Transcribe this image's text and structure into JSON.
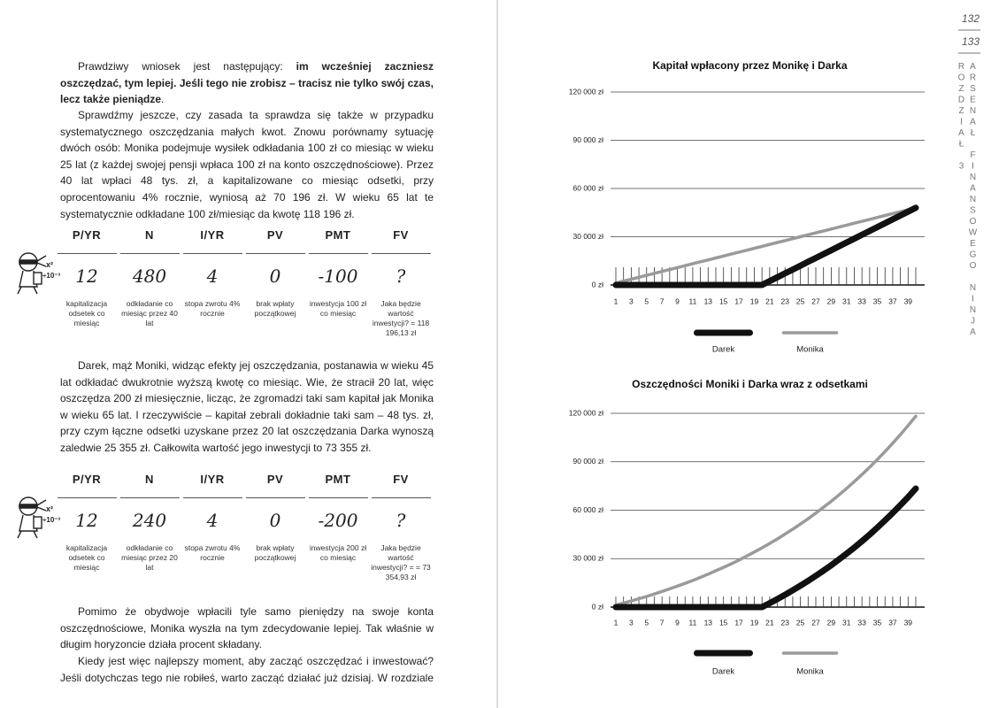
{
  "page_numbers": [
    "132",
    "133"
  ],
  "sidebar": [
    "ROZDZIAŁ 3",
    "ARSENAŁ FINANSOWEGO NINJA"
  ],
  "calculator_icon": [
    "x²",
    "÷10⁻³"
  ],
  "left_page": {
    "paragraphs": [
      [
        "Prawdziwy wniosek jest następujący: ",
        "im wcześniej zaczniesz oszczędzać, tym lepiej. Jeśli tego nie zrobisz – tracisz nie tylko swój czas, lecz także pieniądze",
        "."
      ],
      "Sprawdźmy jeszcze, czy zasada ta sprawdza się także w przypadku systematycznego oszczędzania małych kwot. Znowu porównamy sytuację dwóch osób: Monika podejmuje wysiłek odkładania 100 zł co miesiąc w wieku 25 lat (z każdej swojej pensji wpłaca 100 zł na konto oszczędnościowe). Przez 40 lat wpłaci 48 tys. zł, a kapitalizowane co miesiąc odsetki, przy oprocentowaniu 4% rocznie, wyniosą aż 70 196 zł. W wieku 65 lat te systematycznie odkładane 100 zł/miesiąc da kwotę 118 196 zł.",
      "Darek, mąż Moniki, widząc efekty jej oszczędzania, postanawia w wieku 45 lat odkładać dwukrotnie wyższą kwotę co miesiąc. Wie, że stracił 20 lat, więc oszczędza 200 zł miesięcznie, licząc, że zgromadzi taki sam kapitał jak Monika w wieku 65 lat. I rzeczywiście – kapitał zebrali dokładnie taki sam – 48 tys. zł, przy czym łączne odsetki uzyskane przez 20 lat oszczędzania Darka wynoszą zaledwie 25 355 zł. Całkowita wartość jego inwestycji to 73 355 zł.",
      "Pomimo że obydwoje wpłacili tyle samo pieniędzy na swoje konta oszczędnościowe, Monika wyszła na tym zdecydowanie lepiej. Tak właśnie w długim horyzoncie działa procent składany.",
      "Kiedy jest więc najlepszy moment, aby zacząć oszczędzać i inwestować? Jeśli dotychczas tego nie robiłeś, warto zacząć działać już dzisiaj. W rozdziale"
    ],
    "tables": [
      {
        "header": [
          "P/YR",
          "N",
          "I/YR",
          "PV",
          "PMT",
          "FV"
        ],
        "values": [
          "12",
          "480",
          "4",
          "0",
          "-100",
          "?"
        ],
        "descriptions": [
          "kapitalizacja odsetek co miesiąc",
          "odkładanie co miesiąc przez 40 lat",
          "stopa zwrotu 4% rocznie",
          "brak wpłaty początkowej",
          "inwestycja 100 zł co miesiąc",
          "Jaka będzie wartość inwestycji? = 118 196,13 zł"
        ]
      },
      {
        "header": [
          "P/YR",
          "N",
          "I/YR",
          "PV",
          "PMT",
          "FV"
        ],
        "values": [
          "12",
          "240",
          "4",
          "0",
          "-200",
          "?"
        ],
        "descriptions": [
          "kapitalizacja odsetek co miesiąc",
          "odkładanie co miesiąc przez 20 lat",
          "stopa zwrotu 4% rocznie",
          "brak wpłaty początkowej",
          "inwestycja 200 zł co miesiąc",
          "Jaka będzie wartość inwestycji? = = 73 354,93 zł"
        ]
      }
    ]
  },
  "chart_data": [
    {
      "type": "line",
      "title": "Kapitał wpłacony przez Monikę i Darka",
      "x": [
        1,
        2,
        3,
        4,
        5,
        6,
        7,
        8,
        9,
        10,
        11,
        12,
        13,
        14,
        15,
        16,
        17,
        18,
        19,
        20,
        21,
        22,
        23,
        24,
        25,
        26,
        27,
        28,
        29,
        30,
        31,
        32,
        33,
        34,
        35,
        36,
        37,
        38,
        39,
        40
      ],
      "xlim": [
        1,
        40
      ],
      "xticks": [
        1,
        3,
        5,
        7,
        9,
        11,
        13,
        15,
        17,
        19,
        21,
        23,
        25,
        27,
        29,
        31,
        33,
        35,
        37,
        39
      ],
      "ylim": [
        0,
        120000
      ],
      "yticks": [
        {
          "value": 0,
          "label": "0 zł"
        },
        {
          "value": 30000,
          "label": "30 000 zł"
        },
        {
          "value": 60000,
          "label": "60 000 zł"
        },
        {
          "value": 90000,
          "label": "90 000 zł"
        },
        {
          "value": 120000,
          "label": "120 000 zł"
        }
      ],
      "grid": true,
      "legend": "bottom",
      "series": [
        {
          "name": "Darek",
          "color": "#111111",
          "values": [
            0,
            0,
            0,
            0,
            0,
            0,
            0,
            0,
            0,
            0,
            0,
            0,
            0,
            0,
            0,
            0,
            0,
            0,
            0,
            0,
            2400,
            4800,
            7200,
            9600,
            12000,
            14400,
            16800,
            19200,
            21600,
            24000,
            26400,
            28800,
            31200,
            33600,
            36000,
            38400,
            40800,
            43200,
            45600,
            48000
          ]
        },
        {
          "name": "Monika",
          "color": "#9a9a9a",
          "values": [
            1200,
            2400,
            3600,
            4800,
            6000,
            7200,
            8400,
            9600,
            10800,
            12000,
            13200,
            14400,
            15600,
            16800,
            18000,
            19200,
            20400,
            21600,
            22800,
            24000,
            25200,
            26400,
            27600,
            28800,
            30000,
            31200,
            32400,
            33600,
            34800,
            36000,
            37200,
            38400,
            39600,
            40800,
            42000,
            43200,
            44400,
            45600,
            46800,
            48000
          ]
        }
      ]
    },
    {
      "type": "line",
      "title": "Oszczędności Moniki i Darka wraz z odsetkami",
      "x": [
        1,
        2,
        3,
        4,
        5,
        6,
        7,
        8,
        9,
        10,
        11,
        12,
        13,
        14,
        15,
        16,
        17,
        18,
        19,
        20,
        21,
        22,
        23,
        24,
        25,
        26,
        27,
        28,
        29,
        30,
        31,
        32,
        33,
        34,
        35,
        36,
        37,
        38,
        39,
        40
      ],
      "xlim": [
        1,
        40
      ],
      "xticks": [
        1,
        3,
        5,
        7,
        9,
        11,
        13,
        15,
        17,
        19,
        21,
        23,
        25,
        27,
        29,
        31,
        33,
        35,
        37,
        39
      ],
      "ylim": [
        0,
        120000
      ],
      "yticks": [
        {
          "value": 0,
          "label": "0 zł"
        },
        {
          "value": 30000,
          "label": "30 000 zł"
        },
        {
          "value": 60000,
          "label": "60 000 zł"
        },
        {
          "value": 90000,
          "label": "90 000 zł"
        },
        {
          "value": 120000,
          "label": "120 000 zł"
        }
      ],
      "grid": true,
      "legend": "bottom",
      "series": [
        {
          "name": "Darek",
          "color": "#111111",
          "values": [
            0,
            0,
            0,
            0,
            0,
            0,
            0,
            0,
            0,
            0,
            0,
            0,
            0,
            0,
            0,
            0,
            0,
            0,
            0,
            0,
            2400,
            5000,
            7600,
            10400,
            13300,
            16200,
            19400,
            22600,
            25900,
            29500,
            33100,
            36900,
            40800,
            44900,
            49200,
            53700,
            58300,
            63100,
            68100,
            73400
          ]
        },
        {
          "name": "Monika",
          "color": "#9a9a9a",
          "values": [
            1200,
            2500,
            3800,
            5200,
            6600,
            8100,
            9700,
            11300,
            13000,
            14700,
            16500,
            18400,
            20400,
            22500,
            24600,
            26800,
            29100,
            31600,
            34100,
            36700,
            39400,
            42200,
            45200,
            48200,
            51400,
            54700,
            58200,
            61800,
            65500,
            69400,
            73500,
            77700,
            82100,
            86600,
            91400,
            96300,
            101500,
            106800,
            112400,
            118200
          ]
        }
      ]
    }
  ]
}
